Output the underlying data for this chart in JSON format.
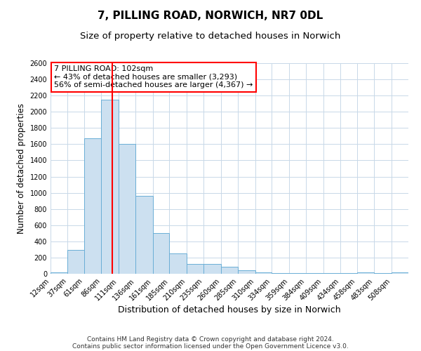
{
  "title": "7, PILLING ROAD, NORWICH, NR7 0DL",
  "subtitle": "Size of property relative to detached houses in Norwich",
  "xlabel": "Distribution of detached houses by size in Norwich",
  "ylabel": "Number of detached properties",
  "bar_color": "#cce0f0",
  "bar_edge_color": "#6aaed6",
  "grid_color": "#c8d8e8",
  "background_color": "#ffffff",
  "bin_labels": [
    "12sqm",
    "37sqm",
    "61sqm",
    "86sqm",
    "111sqm",
    "136sqm",
    "161sqm",
    "185sqm",
    "210sqm",
    "235sqm",
    "260sqm",
    "285sqm",
    "310sqm",
    "334sqm",
    "359sqm",
    "384sqm",
    "409sqm",
    "434sqm",
    "458sqm",
    "483sqm",
    "508sqm"
  ],
  "bar_values": [
    20,
    295,
    1670,
    2150,
    1600,
    960,
    505,
    250,
    120,
    120,
    90,
    40,
    15,
    5,
    5,
    5,
    5,
    5,
    20,
    5,
    20
  ],
  "red_line_x": 102,
  "bin_edges": [
    12,
    37,
    61,
    86,
    111,
    136,
    161,
    185,
    210,
    235,
    260,
    285,
    310,
    334,
    359,
    384,
    409,
    434,
    458,
    483,
    508,
    533
  ],
  "ylim": [
    0,
    2600
  ],
  "yticks": [
    0,
    200,
    400,
    600,
    800,
    1000,
    1200,
    1400,
    1600,
    1800,
    2000,
    2200,
    2400,
    2600
  ],
  "annotation_line1": "7 PILLING ROAD: 102sqm",
  "annotation_line2": "← 43% of detached houses are smaller (3,293)",
  "annotation_line3": "56% of semi-detached houses are larger (4,367) →",
  "footer1": "Contains HM Land Registry data © Crown copyright and database right 2024.",
  "footer2": "Contains public sector information licensed under the Open Government Licence v3.0.",
  "title_fontsize": 11,
  "subtitle_fontsize": 9.5,
  "xlabel_fontsize": 9,
  "ylabel_fontsize": 8.5,
  "tick_fontsize": 7,
  "annotation_fontsize": 8,
  "footer_fontsize": 6.5
}
